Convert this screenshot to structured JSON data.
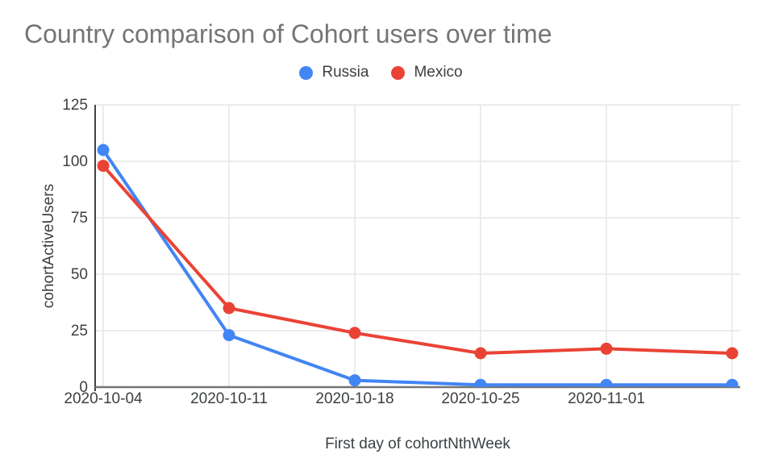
{
  "chart_data": {
    "type": "line",
    "title": "Country comparison of Cohort users over time",
    "xlabel": "First day of cohortNthWeek",
    "ylabel": "cohortActiveUsers",
    "categories": [
      "2020-10-04",
      "2020-10-11",
      "2020-10-18",
      "2020-10-25",
      "2020-11-01",
      ""
    ],
    "series": [
      {
        "name": "Russia",
        "color": "#4285f4",
        "values": [
          105,
          23,
          3,
          1,
          1,
          1
        ]
      },
      {
        "name": "Mexico",
        "color": "#ea4335",
        "values": [
          98,
          35,
          24,
          15,
          17,
          15
        ]
      }
    ],
    "y_ticks": [
      0,
      25,
      50,
      75,
      100,
      125
    ],
    "ylim": [
      0,
      125
    ],
    "grid": true,
    "legend_position": "top",
    "colors": {
      "grid": "#e6e6e6",
      "y_axis_line": "#424242",
      "x_axis_line": "#757575",
      "tick_label": "#3c4043",
      "title": "#757575"
    }
  }
}
